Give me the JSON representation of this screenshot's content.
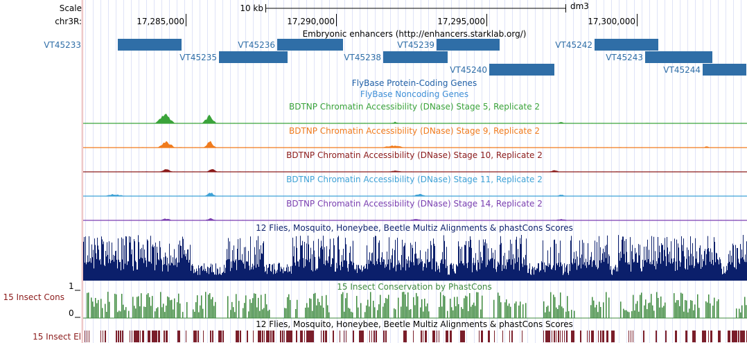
{
  "ruler": {
    "scale_label": "Scale",
    "scale_text": "10 kb",
    "assembly": "dm3",
    "chrom_label": "chr3R:",
    "ticks": [
      "17,285,000",
      "17,290,000",
      "17,295,000",
      "17,300,000"
    ]
  },
  "tracks": {
    "enhancers": {
      "title": "Embryonic enhancers (http://enhancers.starklab.org/)",
      "color": "#2f6ea7",
      "items": [
        "VT45233",
        "VT45235",
        "VT45236",
        "VT45238",
        "VT45239",
        "VT45240",
        "VT45242",
        "VT45243",
        "VT45244"
      ]
    },
    "flybase_coding": {
      "title": "FlyBase Protein-Coding Genes",
      "color": "#1f5fa6"
    },
    "flybase_noncoding": {
      "title": "FlyBase Noncoding Genes",
      "color": "#3f8fd6"
    },
    "dnase": [
      {
        "title": "BDTNP Chromatin Accessibility (DNase) Stage 5, Replicate 2",
        "color": "#3aa33a"
      },
      {
        "title": "BDTNP Chromatin Accessibility (DNase) Stage 9, Replicate 2",
        "color": "#f07b1d"
      },
      {
        "title": "BDTNP Chromatin Accessibility (DNase) Stage 10, Replicate 2",
        "color": "#8b1a1a"
      },
      {
        "title": "BDTNP Chromatin Accessibility (DNase) Stage 11, Replicate 2",
        "color": "#3fa2d6"
      },
      {
        "title": "BDTNP Chromatin Accessibility (DNase) Stage 14, Replicate 2",
        "color": "#7a3fb0"
      }
    ],
    "multiz": {
      "title": "12 Flies, Mosquito, Honeybee, Beetle Multiz Alignments & phastCons Scores",
      "color": "#0b1f6b"
    },
    "phastcons": {
      "title": "15 Insect Conservation by PhastCons",
      "side_label": "15 Insect Cons",
      "scale_max": "1",
      "scale_min": "0",
      "color": "#3e8a3e"
    },
    "elements": {
      "title": "12 Flies, Mosquito, Honeybee, Beetle Multiz Alignments & phastCons Scores",
      "side_label": "15 Insect El",
      "color": "#7a1e2a"
    }
  },
  "colors": {
    "sidebar": "#f6dede",
    "gridline": "#dfe3f7",
    "left_label": "#2f6ea7"
  }
}
